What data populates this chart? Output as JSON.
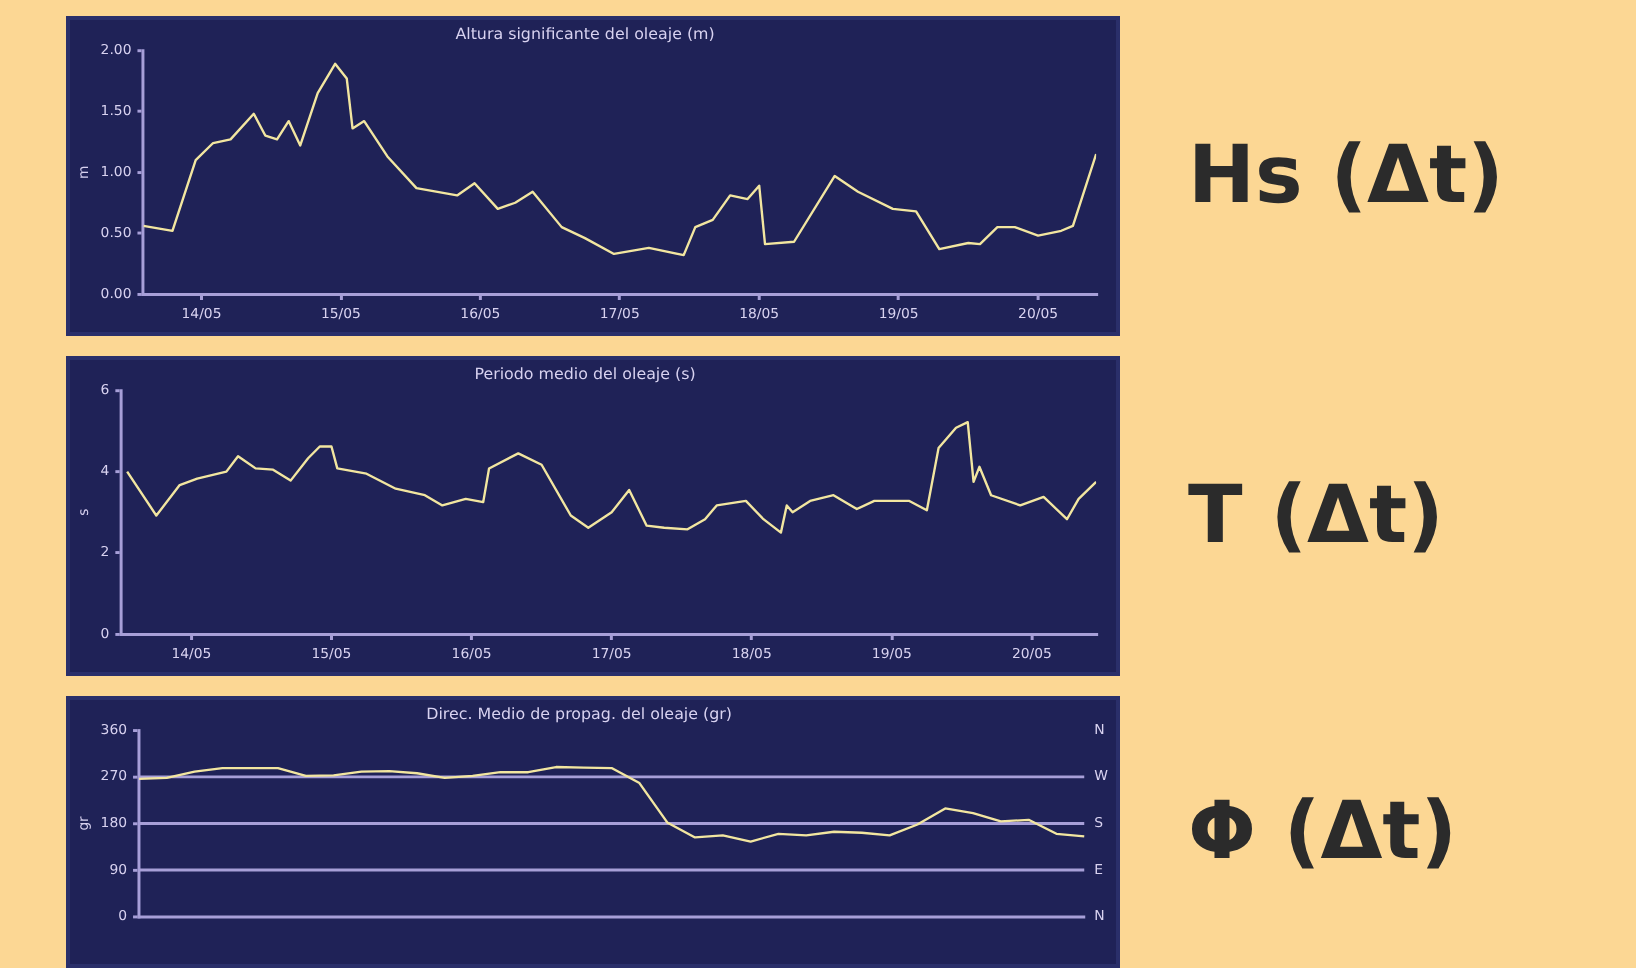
{
  "chart_data": [
    {
      "type": "line",
      "title": "Altura significante del oleaje (m)",
      "ylabel": "m",
      "annotations": [
        "Hs (Δt)"
      ],
      "color": "#f2e6a0",
      "legend": false,
      "marker": "none",
      "xlim": [
        "--05-13T14:00",
        "--05-20T10:00"
      ],
      "xticks": [
        {
          "value": "--05-14",
          "label": "14/05"
        },
        {
          "value": "--05-15",
          "label": "15/05"
        },
        {
          "value": "--05-16",
          "label": "16/05"
        },
        {
          "value": "--05-17",
          "label": "17/05"
        },
        {
          "value": "--05-18",
          "label": "18/05"
        },
        {
          "value": "--05-19",
          "label": "19/05"
        },
        {
          "value": "--05-20",
          "label": "20/05"
        }
      ],
      "ylim": [
        0,
        2
      ],
      "yticks": [
        {
          "value": 0,
          "label": "0.00"
        },
        {
          "value": 0.5,
          "label": "0.50"
        },
        {
          "value": 1,
          "label": "1.00"
        },
        {
          "value": 1.5,
          "label": "1.50"
        },
        {
          "value": 2,
          "label": "2.00"
        }
      ],
      "x": [
        "--05-13T14:00",
        "--05-13T19:00",
        "--05-13T23:00",
        "--05-14T02:00",
        "--05-14T05:00",
        "--05-14T09:00",
        "--05-14T11:00",
        "--05-14T13:00",
        "--05-14T15:00",
        "--05-14T17:00",
        "--05-14T20:00",
        "--05-14T23:00",
        "--05-15T01:00",
        "--05-15T02:00",
        "--05-15T04:00",
        "--05-15T08:00",
        "--05-15T13:00",
        "--05-15T20:00",
        "--05-15T23:00",
        "--05-16T03:00",
        "--05-16T06:00",
        "--05-16T09:00",
        "--05-16T14:00",
        "--05-16T18:00",
        "--05-16T23:00",
        "--05-17T05:00",
        "--05-17T11:00",
        "--05-17T13:00",
        "--05-17T16:00",
        "--05-17T19:00",
        "--05-17T22:00",
        "--05-18T00:00",
        "--05-18T01:00",
        "--05-18T06:00",
        "--05-18T13:00",
        "--05-18T17:00",
        "--05-18T23:00",
        "--05-19T03:00",
        "--05-19T07:00",
        "--05-19T12:00",
        "--05-19T14:00",
        "--05-19T17:00",
        "--05-19T20:00",
        "--05-20T00:00",
        "--05-20T04:00",
        "--05-20T06:00",
        "--05-20T10:00"
      ],
      "values": [
        0.56,
        0.52,
        1.1,
        1.24,
        1.27,
        1.48,
        1.3,
        1.27,
        1.42,
        1.22,
        1.65,
        1.89,
        1.77,
        1.36,
        1.42,
        1.13,
        0.87,
        0.81,
        0.91,
        0.7,
        0.75,
        0.84,
        0.55,
        0.46,
        0.33,
        0.38,
        0.32,
        0.55,
        0.61,
        0.81,
        0.78,
        0.89,
        0.41,
        0.43,
        0.97,
        0.84,
        0.7,
        0.68,
        0.37,
        0.42,
        0.41,
        0.55,
        0.55,
        0.48,
        0.52,
        0.56,
        1.15
      ]
    },
    {
      "type": "line",
      "title": "Periodo medio del oleaje (s)",
      "ylabel": "s",
      "annotations": [
        "T (Δt)"
      ],
      "color": "#f2e6a0",
      "legend": false,
      "marker": "none",
      "xlim": [
        "--05-13T12:00",
        "--05-20T11:00"
      ],
      "xticks": [
        {
          "value": "--05-14",
          "label": "14/05"
        },
        {
          "value": "--05-15",
          "label": "15/05"
        },
        {
          "value": "--05-16",
          "label": "16/05"
        },
        {
          "value": "--05-17",
          "label": "17/05"
        },
        {
          "value": "--05-18",
          "label": "18/05"
        },
        {
          "value": "--05-19",
          "label": "19/05"
        },
        {
          "value": "--05-20",
          "label": "20/05"
        }
      ],
      "ylim": [
        0,
        6
      ],
      "yticks": [
        0,
        2,
        4,
        6
      ],
      "x": [
        "--05-13T13:00",
        "--05-13T18:00",
        "--05-13T22:00",
        "--05-14T01:00",
        "--05-14T06:00",
        "--05-14T08:00",
        "--05-14T11:00",
        "--05-14T14:00",
        "--05-14T17:00",
        "--05-14T20:00",
        "--05-14T22:00",
        "--05-15T00:00",
        "--05-15T01:00",
        "--05-15T06:00",
        "--05-15T11:00",
        "--05-15T16:00",
        "--05-15T19:00",
        "--05-15T23:00",
        "--05-16T02:00",
        "--05-16T03:00",
        "--05-16T08:00",
        "--05-16T12:00",
        "--05-16T17:00",
        "--05-16T20:00",
        "--05-17T00:00",
        "--05-17T03:00",
        "--05-17T06:00",
        "--05-17T09:00",
        "--05-17T13:00",
        "--05-17T16:00",
        "--05-17T18:00",
        "--05-17T23:00",
        "--05-18T02:00",
        "--05-18T05:00",
        "--05-18T06:00",
        "--05-18T07:00",
        "--05-18T10:00",
        "--05-18T14:00",
        "--05-18T18:00",
        "--05-18T21:00",
        "--05-19T03:00",
        "--05-19T06:00",
        "--05-19T08:00",
        "--05-19T11:00",
        "--05-19T13:00",
        "--05-19T14:00",
        "--05-19T15:00",
        "--05-19T17:00",
        "--05-19T22:00",
        "--05-20T02:00",
        "--05-20T06:00",
        "--05-20T08:00",
        "--05-20T11:00"
      ],
      "values": [
        4.0,
        2.92,
        3.67,
        3.83,
        4.0,
        4.38,
        4.08,
        4.05,
        3.78,
        4.33,
        4.62,
        4.62,
        4.08,
        3.95,
        3.58,
        3.42,
        3.17,
        3.33,
        3.25,
        4.08,
        4.45,
        4.17,
        2.92,
        2.62,
        3.0,
        3.55,
        2.67,
        2.62,
        2.58,
        2.83,
        3.17,
        3.28,
        2.83,
        2.5,
        3.17,
        3.0,
        3.28,
        3.42,
        3.08,
        3.28,
        3.28,
        3.05,
        4.58,
        5.08,
        5.22,
        3.75,
        4.12,
        3.42,
        3.17,
        3.38,
        2.83,
        3.33,
        3.75
      ]
    },
    {
      "type": "line",
      "title": "Direc. Medio de propag. del oleaje (gr)",
      "ylabel": "gr",
      "annotations": [
        "Φ (Δt)",
        "N",
        "N"
      ],
      "color": "#f2e6a0",
      "legend": false,
      "marker": "none",
      "categories": [
        null,
        null,
        null,
        null,
        null,
        null,
        null,
        null,
        null,
        null,
        null,
        null,
        null,
        null,
        null,
        null,
        null,
        null,
        null,
        null,
        null,
        null,
        null,
        null,
        null,
        null,
        null,
        null,
        null,
        null,
        null,
        null,
        null,
        null,
        null
      ],
      "ylim": [
        0,
        360
      ],
      "yticks": [
        0,
        90,
        180,
        270,
        360
      ],
      "ref_lines": [
        {
          "axis": "y",
          "value": 90,
          "label": "E"
        },
        {
          "axis": "y",
          "value": 180,
          "label": "S"
        },
        {
          "axis": "y",
          "value": 270,
          "label": "W"
        }
      ],
      "values": [
        266,
        268,
        280,
        287,
        287,
        287,
        272,
        273,
        280,
        281,
        277,
        268,
        272,
        279,
        279,
        289,
        288,
        287,
        258,
        182,
        153,
        157,
        145,
        160,
        157,
        164,
        162,
        157,
        178,
        209,
        200,
        184,
        187,
        160,
        155
      ]
    }
  ]
}
